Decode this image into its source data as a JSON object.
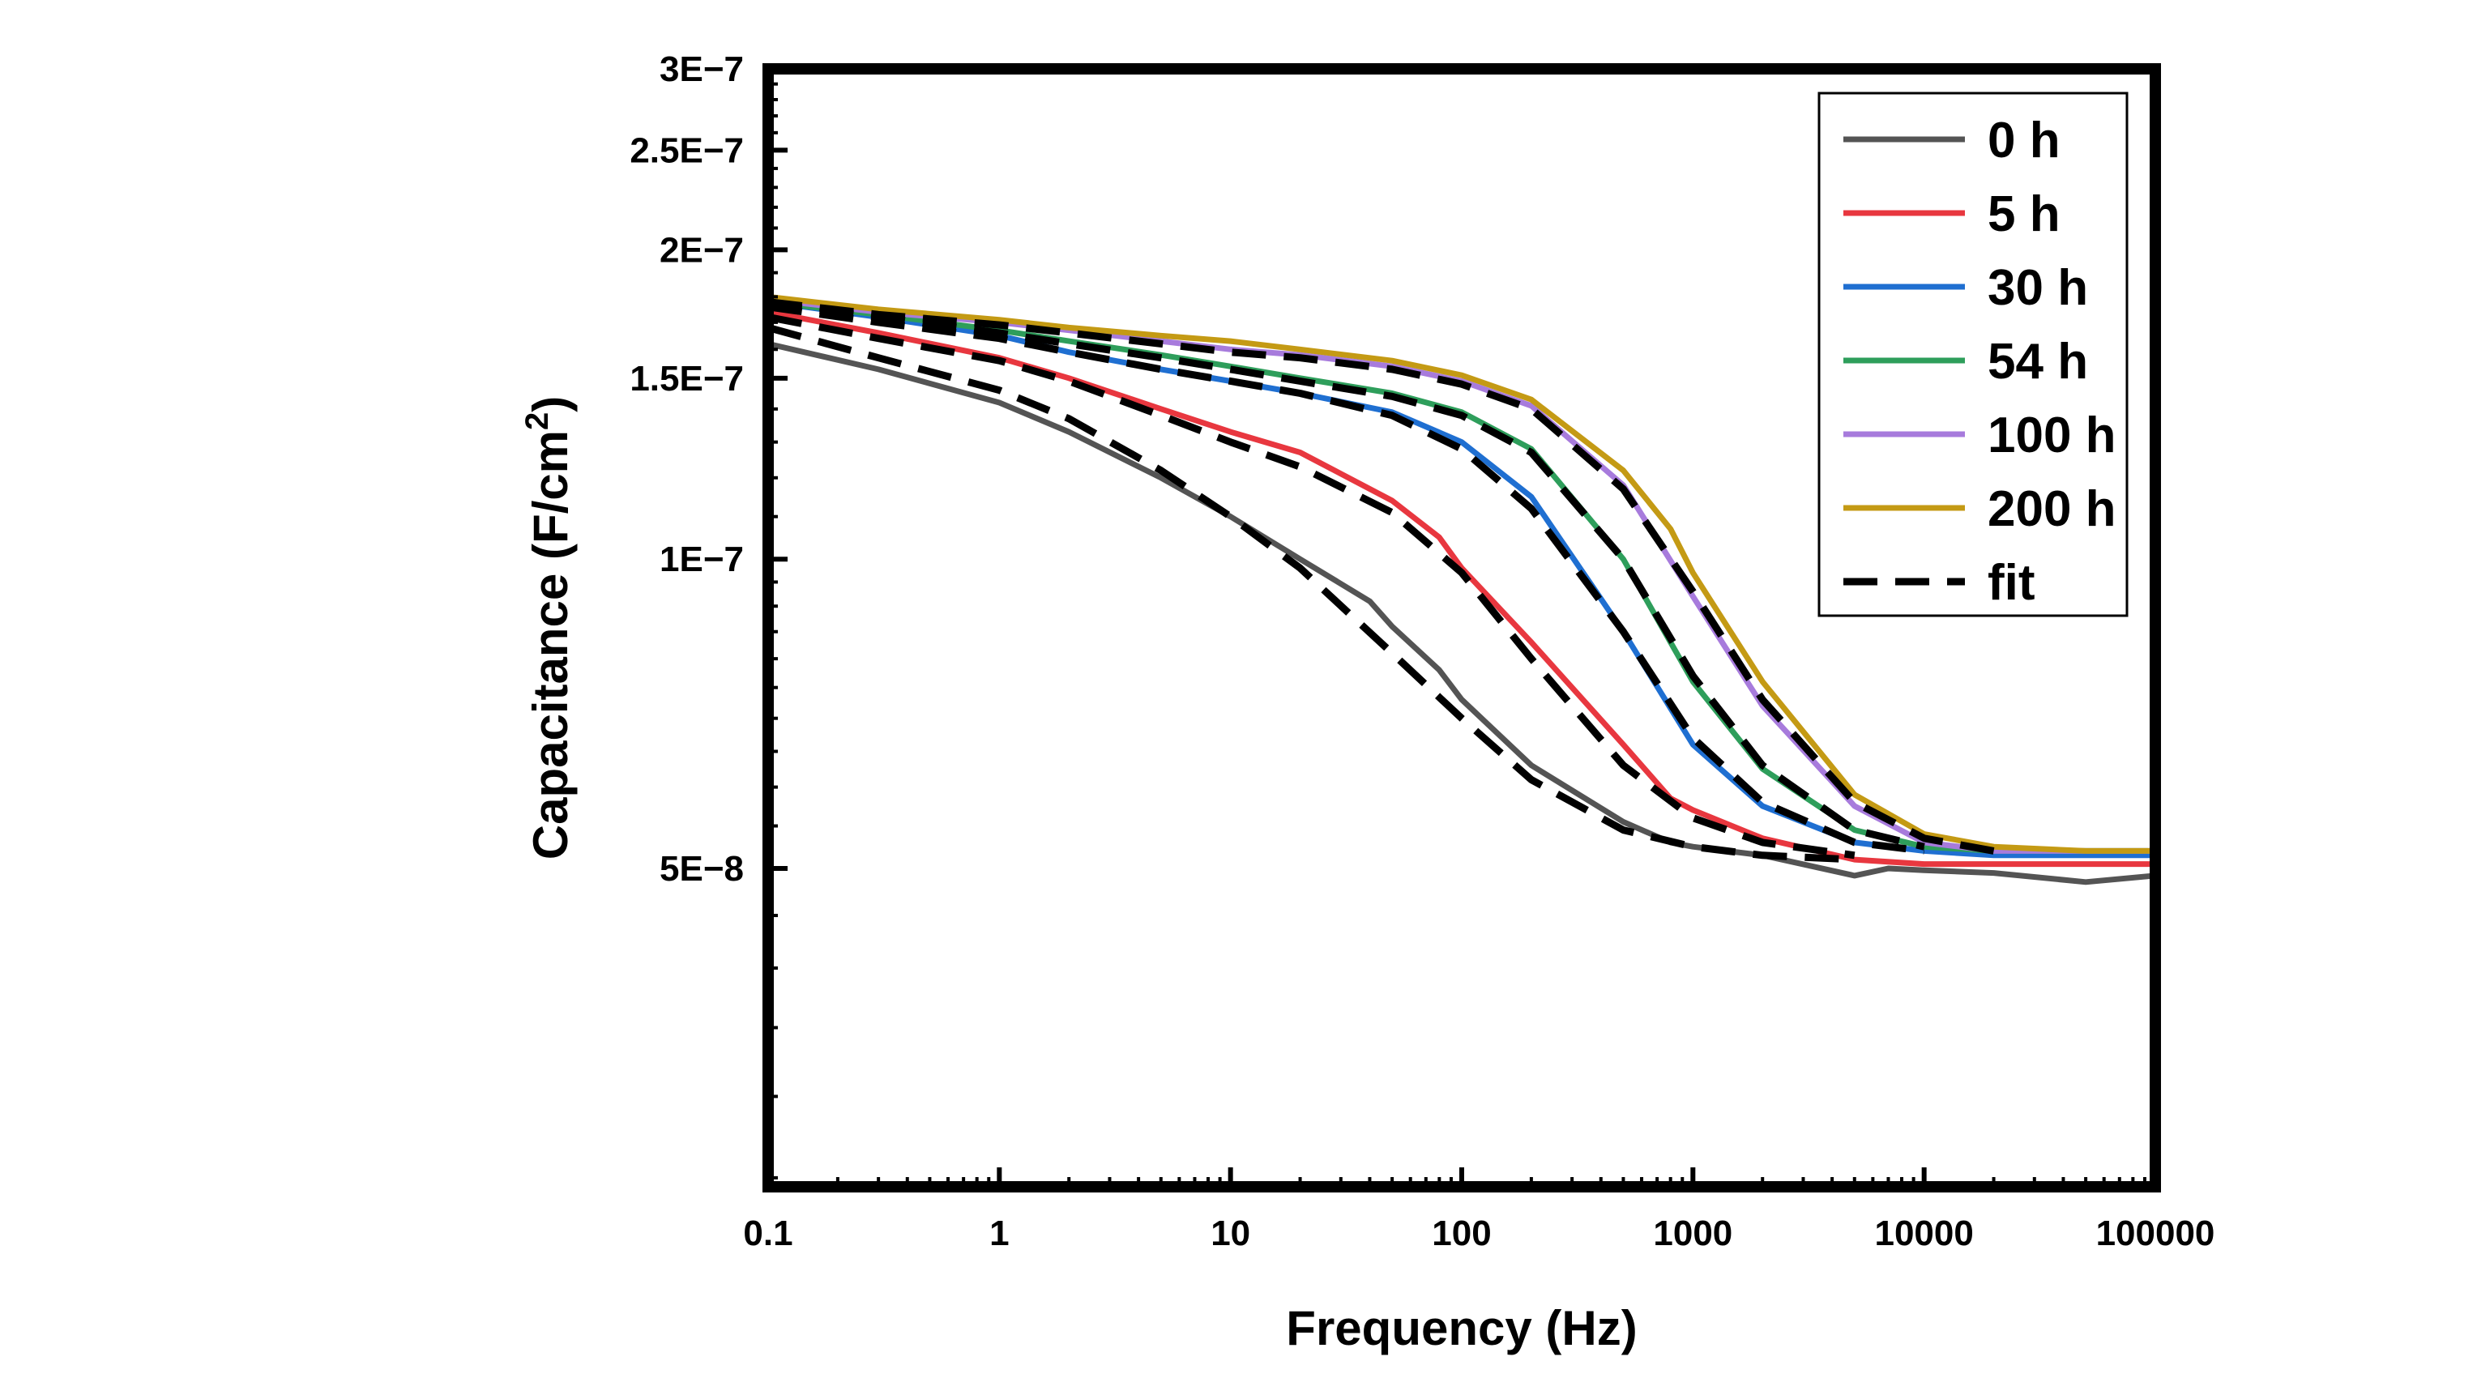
{
  "chart_data": {
    "type": "line",
    "x_scale": "log",
    "y_scale": "log",
    "xlabel": "Frequency (Hz)",
    "ylabel_main": "Capacitance (F/cm",
    "ylabel_sup": "2",
    "ylabel_close": ")",
    "xlim": [
      0.1,
      100000
    ],
    "ylim": [
      2.45e-08,
      3e-07
    ],
    "x_ticks": [
      {
        "value": 0.1,
        "label": "0.1"
      },
      {
        "value": 1,
        "label": "1"
      },
      {
        "value": 10,
        "label": "10"
      },
      {
        "value": 100,
        "label": "100"
      },
      {
        "value": 1000,
        "label": "1000"
      },
      {
        "value": 10000,
        "label": "10000"
      },
      {
        "value": 100000,
        "label": "100000"
      }
    ],
    "y_ticks": [
      {
        "value": 5e-08,
        "label": "5E−8"
      },
      {
        "value": 1e-07,
        "label": "1E−7"
      },
      {
        "value": 1.5e-07,
        "label": "1.5E−7"
      },
      {
        "value": 2e-07,
        "label": "2E−7"
      },
      {
        "value": 2.5e-07,
        "label": "2.5E−7"
      },
      {
        "value": 3e-07,
        "label": "3E−7"
      }
    ],
    "legend_position": "top-right",
    "grid": false,
    "series": [
      {
        "name": "0 h",
        "color": "#545454",
        "style": "solid",
        "x": [
          0.1,
          0.3,
          1,
          2,
          5,
          10,
          20,
          40,
          50,
          80,
          100,
          200,
          500,
          800,
          1000,
          2000,
          5000,
          7000,
          10000,
          20000,
          50000,
          100000
        ],
        "y": [
          1.62e-07,
          1.53e-07,
          1.42e-07,
          1.33e-07,
          1.2e-07,
          1.1e-07,
          1e-07,
          9.1e-08,
          8.6e-08,
          7.8e-08,
          7.3e-08,
          6.3e-08,
          5.55e-08,
          5.3e-08,
          5.25e-08,
          5.15e-08,
          4.92e-08,
          5e-08,
          4.98e-08,
          4.95e-08,
          4.85e-08,
          4.92e-08
        ]
      },
      {
        "name": "5 h",
        "color": "#e8373f",
        "style": "solid",
        "x": [
          0.1,
          0.3,
          1,
          2,
          5,
          10,
          20,
          50,
          80,
          100,
          200,
          500,
          800,
          1000,
          2000,
          5000,
          10000,
          20000,
          50000,
          100000
        ],
        "y": [
          1.74e-07,
          1.66e-07,
          1.57e-07,
          1.5e-07,
          1.4e-07,
          1.33e-07,
          1.27e-07,
          1.14e-07,
          1.05e-07,
          9.8e-08,
          8.3e-08,
          6.6e-08,
          5.85e-08,
          5.7e-08,
          5.35e-08,
          5.1e-08,
          5.05e-08,
          5.05e-08,
          5.05e-08,
          5.05e-08
        ]
      },
      {
        "name": "30 h",
        "color": "#1f6fd1",
        "style": "solid",
        "x": [
          0.1,
          0.3,
          1,
          2,
          5,
          10,
          20,
          50,
          100,
          200,
          500,
          1000,
          2000,
          5000,
          10000,
          20000,
          50000,
          100000
        ],
        "y": [
          1.78e-07,
          1.72e-07,
          1.65e-07,
          1.59e-07,
          1.53e-07,
          1.49e-07,
          1.45e-07,
          1.39e-07,
          1.3e-07,
          1.15e-07,
          8.5e-08,
          6.6e-08,
          5.75e-08,
          5.3e-08,
          5.2e-08,
          5.15e-08,
          5.15e-08,
          5.15e-08
        ]
      },
      {
        "name": "54 h",
        "color": "#2e9e5b",
        "style": "solid",
        "x": [
          0.1,
          0.3,
          1,
          2,
          5,
          10,
          20,
          50,
          100,
          200,
          500,
          1000,
          2000,
          5000,
          10000,
          20000,
          50000,
          100000
        ],
        "y": [
          1.78e-07,
          1.73e-07,
          1.67e-07,
          1.63e-07,
          1.58e-07,
          1.54e-07,
          1.5e-07,
          1.45e-07,
          1.39e-07,
          1.28e-07,
          1e-07,
          7.6e-08,
          6.25e-08,
          5.45e-08,
          5.25e-08,
          5.2e-08,
          5.2e-08,
          5.2e-08
        ]
      },
      {
        "name": "100 h",
        "color": "#a77bdc",
        "style": "solid",
        "x": [
          0.1,
          0.3,
          1,
          2,
          5,
          10,
          20,
          50,
          100,
          200,
          500,
          1000,
          2000,
          5000,
          10000,
          20000,
          50000,
          100000
        ],
        "y": [
          1.79e-07,
          1.74e-07,
          1.7e-07,
          1.67e-07,
          1.63e-07,
          1.6e-07,
          1.58e-07,
          1.54e-07,
          1.49e-07,
          1.41e-07,
          1.18e-07,
          9.2e-08,
          7.2e-08,
          5.75e-08,
          5.3e-08,
          5.2e-08,
          5.2e-08,
          5.2e-08
        ]
      },
      {
        "name": "200 h",
        "color": "#c49a14",
        "style": "solid",
        "x": [
          0.1,
          0.3,
          1,
          2,
          5,
          10,
          20,
          50,
          100,
          200,
          500,
          800,
          1000,
          2000,
          5000,
          10000,
          20000,
          50000,
          100000
        ],
        "y": [
          1.8e-07,
          1.75e-07,
          1.71e-07,
          1.68e-07,
          1.65e-07,
          1.63e-07,
          1.6e-07,
          1.56e-07,
          1.51e-07,
          1.43e-07,
          1.22e-07,
          1.07e-07,
          9.7e-08,
          7.6e-08,
          5.9e-08,
          5.4e-08,
          5.25e-08,
          5.2e-08,
          5.2e-08
        ]
      },
      {
        "name": "fit",
        "color": "#000000",
        "style": "dashed",
        "fit": true,
        "curves": [
          {
            "x": [
              0.1,
              0.3,
              1,
              2,
              5,
              10,
              20,
              50,
              100,
              200,
              500,
              1000,
              2000,
              5000
            ],
            "y": [
              1.68e-07,
              1.57e-07,
              1.46e-07,
              1.37e-07,
              1.22e-07,
              1.1e-07,
              9.8e-08,
              8.1e-08,
              7e-08,
              6.1e-08,
              5.45e-08,
              5.25e-08,
              5.15e-08,
              5.1e-08
            ]
          },
          {
            "x": [
              0.1,
              0.3,
              1,
              2,
              5,
              10,
              20,
              50,
              100,
              200,
              500,
              1000,
              2000,
              5000
            ],
            "y": [
              1.72e-07,
              1.64e-07,
              1.56e-07,
              1.49e-07,
              1.38e-07,
              1.3e-07,
              1.23e-07,
              1.11e-07,
              9.7e-08,
              8e-08,
              6.3e-08,
              5.6e-08,
              5.3e-08,
              5.15e-08
            ]
          },
          {
            "x": [
              0.1,
              0.3,
              1,
              2,
              5,
              10,
              20,
              50,
              100,
              200,
              500,
              1000,
              2000,
              5000,
              10000
            ],
            "y": [
              1.76e-07,
              1.7e-07,
              1.64e-07,
              1.59e-07,
              1.53e-07,
              1.49e-07,
              1.45e-07,
              1.38e-07,
              1.28e-07,
              1.12e-07,
              8.5e-08,
              6.7e-08,
              5.8e-08,
              5.3e-08,
              5.2e-08
            ]
          },
          {
            "x": [
              0.1,
              0.3,
              1,
              2,
              5,
              10,
              20,
              50,
              100,
              200,
              500,
              1000,
              2000,
              5000,
              10000
            ],
            "y": [
              1.77e-07,
              1.72e-07,
              1.66e-07,
              1.62e-07,
              1.57e-07,
              1.53e-07,
              1.49e-07,
              1.44e-07,
              1.38e-07,
              1.27e-07,
              1e-07,
              7.7e-08,
              6.3e-08,
              5.45e-08,
              5.25e-08
            ]
          },
          {
            "x": [
              0.1,
              0.3,
              1,
              2,
              5,
              10,
              20,
              50,
              100,
              200,
              500,
              1000,
              2000,
              5000,
              10000,
              20000
            ],
            "y": [
              1.78e-07,
              1.73e-07,
              1.69e-07,
              1.66e-07,
              1.62e-07,
              1.59e-07,
              1.57e-07,
              1.53e-07,
              1.48e-07,
              1.4e-07,
              1.17e-07,
              9.3e-08,
              7.3e-08,
              5.8e-08,
              5.35e-08,
              5.2e-08
            ]
          }
        ]
      }
    ]
  }
}
